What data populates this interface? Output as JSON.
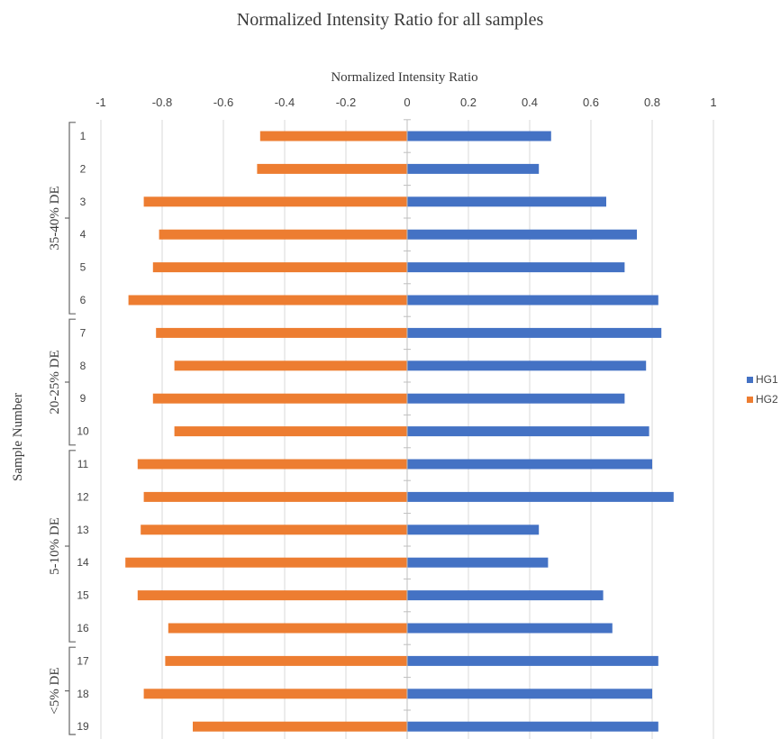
{
  "chart_data": {
    "type": "bar",
    "orientation": "horizontal",
    "title": "Normalized Intensity Ratio for all samples",
    "xlabel": "Normalized Intensity Ratio",
    "ylabel": "Sample Number",
    "xlim": [
      -1,
      1
    ],
    "x_ticks": [
      "-1",
      "-0.8",
      "-0.6",
      "-0.4",
      "-0.2",
      "0",
      "0.2",
      "0.4",
      "0.6",
      "0.8",
      "1"
    ],
    "x_tick_values": [
      -1,
      -0.8,
      -0.6,
      -0.4,
      -0.2,
      0,
      0.2,
      0.4,
      0.6,
      0.8,
      1
    ],
    "categories": [
      "1",
      "2",
      "3",
      "4",
      "5",
      "6",
      "7",
      "8",
      "9",
      "10",
      "11",
      "12",
      "13",
      "14",
      "15",
      "16",
      "17",
      "18",
      "19"
    ],
    "series": [
      {
        "name": "HG1",
        "color": "#4472C4",
        "values": [
          0.47,
          0.43,
          0.65,
          0.75,
          0.71,
          0.82,
          0.83,
          0.78,
          0.71,
          0.79,
          0.8,
          0.87,
          0.43,
          0.46,
          0.64,
          0.67,
          0.82,
          0.8,
          0.82
        ]
      },
      {
        "name": "HG2",
        "color": "#ED7D31",
        "values": [
          -0.48,
          -0.49,
          -0.86,
          -0.81,
          -0.83,
          -0.91,
          -0.82,
          -0.76,
          -0.83,
          -0.76,
          -0.88,
          -0.86,
          -0.87,
          -0.92,
          -0.88,
          -0.78,
          -0.79,
          -0.86,
          -0.7
        ]
      }
    ],
    "groups": [
      {
        "label": "35-40% DE",
        "from": 1,
        "to": 6
      },
      {
        "label": "20-25% DE",
        "from": 7,
        "to": 10
      },
      {
        "label": "5-10% DE",
        "from": 11,
        "to": 16
      },
      {
        "label": "<5% DE",
        "from": 17,
        "to": 19
      }
    ],
    "grid": true,
    "legend_position": "right"
  }
}
